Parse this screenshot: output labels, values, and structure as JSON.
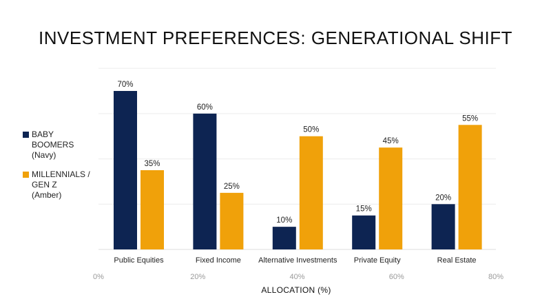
{
  "chart_data": {
    "type": "bar",
    "title": "INVESTMENT PREFERENCES: GENERATIONAL SHIFT",
    "xlabel": "ALLOCATION (%)",
    "ylabel": "",
    "categories": [
      "Public Equities",
      "Fixed Income",
      "Alternative Investments",
      "Private Equity",
      "Real Estate"
    ],
    "series": [
      {
        "name": "BABY\nBOOMERS\n(Navy)",
        "color": "#0d2452",
        "values": [
          70,
          60,
          10,
          15,
          20
        ]
      },
      {
        "name": "MILLENNIALS /\nGEN Z\n(Amber)",
        "color": "#f0a10a",
        "values": [
          35,
          25,
          50,
          45,
          55
        ]
      }
    ],
    "value_suffix": "%",
    "ylim": [
      0,
      80
    ],
    "axis_ticks": [
      "0%",
      "20%",
      "40%",
      "60%",
      "80%"
    ],
    "grid": true,
    "legend_position": "left"
  }
}
